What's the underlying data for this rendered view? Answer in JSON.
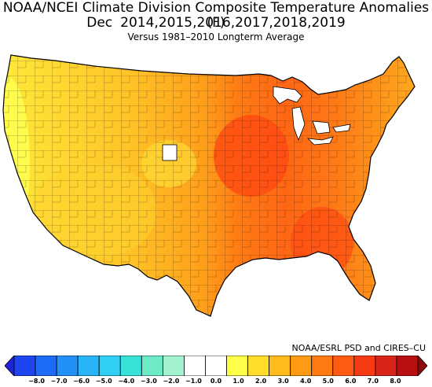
{
  "title": "NOAA/NCEI Climate Division Composite Temperature Anomalies (F)",
  "subtitle": {
    "month": "Dec",
    "years": "2014,2015,2016,2017,2018,2019"
  },
  "caption": "Versus 1981–2010 Longterm Average",
  "credit": "NOAA/ESRL PSD and CIRES–CU",
  "legend": {
    "colors": [
      "#2222d8",
      "#1f45f0",
      "#1e6cf6",
      "#2290f7",
      "#28b4f8",
      "#30d0f4",
      "#39e2d6",
      "#6cebc6",
      "#a3f2cf",
      "#ffffff",
      "#ffffff",
      "#ffff4a",
      "#ffdd2a",
      "#ffbb1c",
      "#ff9a14",
      "#ff7a10",
      "#ff5a12",
      "#f53a14",
      "#d72318",
      "#b81010",
      "#8c0a0a"
    ],
    "tick_labels": [
      "−8.0",
      "−7.0",
      "−6.0",
      "−5.0",
      "−4.0",
      "−3.0",
      "−2.0",
      "−1.0",
      "0.0",
      "1.0",
      "2.0",
      "3.0",
      "4.0",
      "5.0",
      "6.0",
      "7.0",
      "8.0"
    ]
  }
}
